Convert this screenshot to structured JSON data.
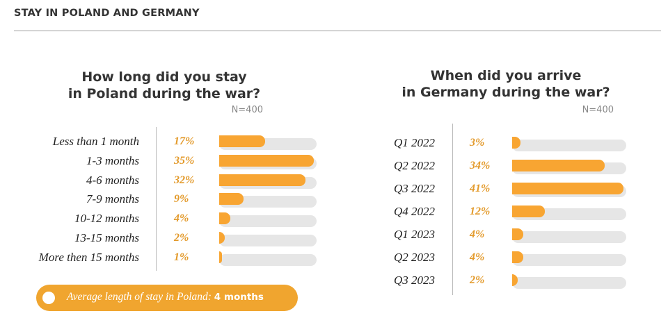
{
  "header": {
    "title": "STAY IN POLAND AND GERMANY"
  },
  "note": {
    "text": "Average length of stay in Poland:",
    "value": "4 months"
  },
  "chart_data": [
    {
      "type": "hbar",
      "title": "How long did you stay\nin Poland during the war?",
      "subtitle": "N=400",
      "categories": [
        "Less than 1 month",
        "1-3 months",
        "4-6 months",
        "7-9 months",
        "10-12 months",
        "13-15 months",
        "More then 15 months"
      ],
      "values": [
        17,
        35,
        32,
        9,
        4,
        2,
        1
      ],
      "value_labels": [
        "17%",
        "35%",
        "32%",
        "9%",
        "4%",
        "2%",
        "1%"
      ],
      "color": "#f8a532",
      "label_color": "#e39a2b",
      "xlim": [
        0,
        36
      ]
    },
    {
      "type": "hbar",
      "title": "When did you arrive\nin Germany during the war?",
      "subtitle": "N=400",
      "categories": [
        "Q1 2022",
        "Q2 2022",
        "Q3 2022",
        "Q4 2022",
        "Q1 2023",
        "Q2 2023",
        "Q3 2023"
      ],
      "values": [
        3,
        34,
        41,
        12,
        4,
        4,
        2
      ],
      "value_labels": [
        "3%",
        "34%",
        "41%",
        "12%",
        "4%",
        "4%",
        "2%"
      ],
      "color": "#f8a532",
      "label_color": "#e39a2b",
      "xlim": [
        0,
        42
      ]
    }
  ]
}
